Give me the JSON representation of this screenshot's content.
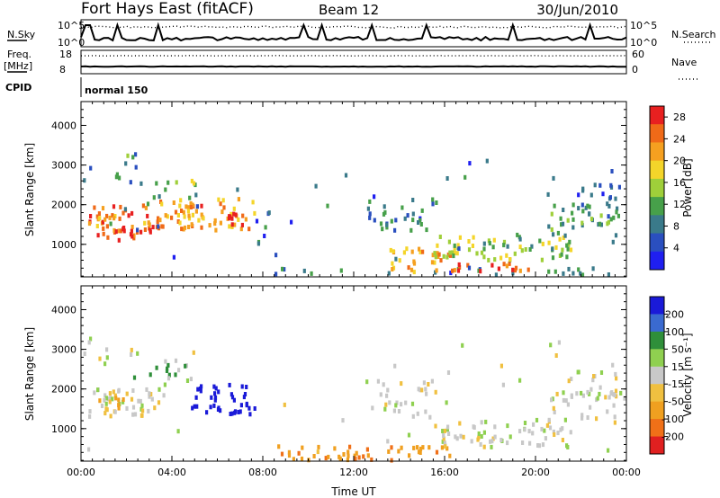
{
  "header": {
    "station": "Fort Hays East (fitACF)",
    "beam": "Beam 12",
    "date": "30/Jun/2010"
  },
  "strips": {
    "nsky_label": "N.Sky",
    "nsearch_label": "N.Search",
    "noise_ticks": [
      "10^5",
      "10^0"
    ],
    "freq_label": "Freq.",
    "freq_unit": "[MHz]",
    "freq_ticks": [
      "18",
      "8"
    ],
    "nave_label": "Nave",
    "nave_ticks": [
      "60",
      "0"
    ],
    "cpid_label": "CPID",
    "cpid_value": "normal 150"
  },
  "colors": {
    "power": [
      "#1f1ff0",
      "#2a4fbf",
      "#3a7a8a",
      "#47a04a",
      "#9fcf3a",
      "#f4d52a",
      "#f5a020",
      "#f06a18",
      "#e82020"
    ],
    "velocity": [
      "#1a1ad8",
      "#3a6ad0",
      "#2f8f3a",
      "#8fd050",
      "#c8c8c8",
      "#f0c040",
      "#f0a020",
      "#f07018",
      "#e02020"
    ]
  },
  "chart_data": [
    {
      "type": "heatmap",
      "name": "power",
      "xlabel": "",
      "ylabel": "Slant Range [km]",
      "xlim": [
        0,
        24
      ],
      "ylim": [
        180,
        4600
      ],
      "yticks": [
        "1000",
        "2000",
        "3000",
        "4000"
      ],
      "colorbar": {
        "label": "Power [dB]",
        "ticks": [
          "4",
          "8",
          "12",
          "16",
          "20",
          "24",
          "28"
        ],
        "range": [
          0,
          30
        ]
      },
      "regions": [
        {
          "t": [
            0.2,
            3.6
          ],
          "r": [
            1300,
            2000
          ],
          "v": 24,
          "d": 0.95
        },
        {
          "t": [
            0.6,
            3.2
          ],
          "r": [
            1100,
            1400
          ],
          "v": 28,
          "d": 0.9
        },
        {
          "t": [
            3.4,
            7.6
          ],
          "r": [
            1350,
            2150
          ],
          "v": 22,
          "d": 0.85
        },
        {
          "t": [
            6.0,
            7.2
          ],
          "r": [
            1500,
            1800
          ],
          "v": 28,
          "d": 0.9
        },
        {
          "t": [
            2.0,
            5.0
          ],
          "r": [
            2000,
            2600
          ],
          "v": 13,
          "d": 0.35
        },
        {
          "t": [
            0.0,
            2.5
          ],
          "r": [
            2600,
            3300
          ],
          "v": 9,
          "d": 0.25
        },
        {
          "t": [
            7.6,
            8.3
          ],
          "r": [
            1000,
            1800
          ],
          "v": 7,
          "d": 0.45
        },
        {
          "t": [
            8.5,
            24.0
          ],
          "r": [
            200,
            400
          ],
          "v": 8,
          "d": 0.35
        },
        {
          "t": [
            12.5,
            15.6
          ],
          "r": [
            1300,
            2200
          ],
          "v": 8,
          "d": 0.5
        },
        {
          "t": [
            13.5,
            16.5
          ],
          "r": [
            300,
            900
          ],
          "v": 22,
          "d": 0.75
        },
        {
          "t": [
            16.0,
            20.0
          ],
          "r": [
            250,
            550
          ],
          "v": 27,
          "d": 0.6
        },
        {
          "t": [
            15.5,
            21.5
          ],
          "r": [
            600,
            1200
          ],
          "v": 14,
          "d": 0.8
        },
        {
          "t": [
            20.5,
            23.7
          ],
          "r": [
            1200,
            2000
          ],
          "v": 12,
          "d": 0.6
        },
        {
          "t": [
            21.5,
            23.5
          ],
          "r": [
            1700,
            2700
          ],
          "v": 6,
          "d": 0.45
        },
        {
          "t": [
            0.0,
            24.0
          ],
          "r": [
            400,
            3300
          ],
          "v": 6,
          "d": 0.02
        }
      ]
    },
    {
      "type": "heatmap",
      "name": "velocity",
      "xlabel": "Time UT",
      "ylabel": "Slant Range [km]",
      "xlim": [
        0,
        24
      ],
      "ylim": [
        180,
        4600
      ],
      "xticks": [
        "00:00",
        "04:00",
        "08:00",
        "12:00",
        "16:00",
        "20:00",
        "00:00"
      ],
      "yticks": [
        "1000",
        "2000",
        "3000",
        "4000"
      ],
      "colorbar": {
        "label": "Velocity [m s⁻¹]",
        "ticks": [
          "200",
          "100",
          "50",
          "15",
          "-15",
          "-50",
          "-100",
          "-200"
        ]
      },
      "regions": [
        {
          "t": [
            0.2,
            3.6
          ],
          "r": [
            1300,
            2000
          ],
          "v": 0,
          "d": 0.9
        },
        {
          "t": [
            0.5,
            2.5
          ],
          "r": [
            1400,
            1900
          ],
          "v": -40,
          "d": 0.4
        },
        {
          "t": [
            4.8,
            7.6
          ],
          "r": [
            1350,
            2100
          ],
          "v": 200,
          "d": 0.9
        },
        {
          "t": [
            2.0,
            5.0
          ],
          "r": [
            2000,
            2700
          ],
          "v": 30,
          "d": 0.3
        },
        {
          "t": [
            0.0,
            2.5
          ],
          "r": [
            2600,
            3300
          ],
          "v": 0,
          "d": 0.25
        },
        {
          "t": [
            8.5,
            16.5
          ],
          "r": [
            200,
            550
          ],
          "v": -60,
          "d": 0.75
        },
        {
          "t": [
            12.5,
            15.6
          ],
          "r": [
            1200,
            2200
          ],
          "v": 0,
          "d": 0.45
        },
        {
          "t": [
            15.5,
            21.5
          ],
          "r": [
            500,
            1200
          ],
          "v": 0,
          "d": 0.7
        },
        {
          "t": [
            20.5,
            23.7
          ],
          "r": [
            1200,
            2000
          ],
          "v": 0,
          "d": 0.5
        },
        {
          "t": [
            21.5,
            23.5
          ],
          "r": [
            1700,
            2700
          ],
          "v": 0,
          "d": 0.4
        },
        {
          "t": [
            0.0,
            24.0
          ],
          "r": [
            400,
            3300
          ],
          "v": 0,
          "d": 0.02
        }
      ]
    }
  ]
}
